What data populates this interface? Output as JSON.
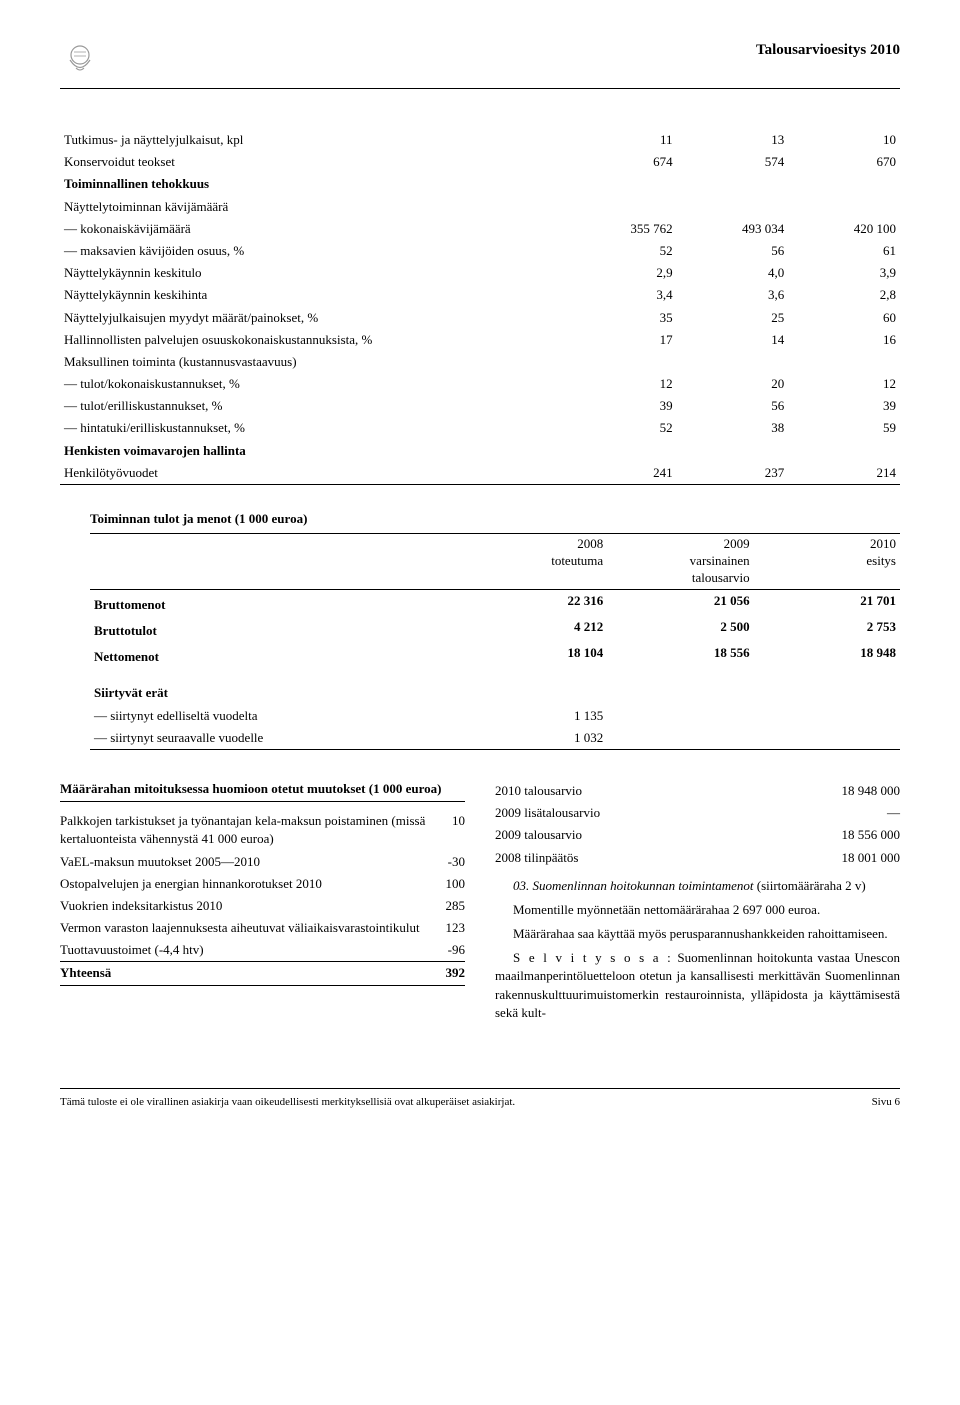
{
  "header": {
    "doc_title": "Talousarvioesitys 2010"
  },
  "table1": {
    "rows": [
      {
        "label": "Tutkimus- ja näyttelyjulkaisut, kpl",
        "c1": "11",
        "c2": "13",
        "c3": "10",
        "indent": false,
        "bold": false
      },
      {
        "label": "Konservoidut teokset",
        "c1": "674",
        "c2": "574",
        "c3": "670",
        "indent": false,
        "bold": false
      },
      {
        "label": "Toiminnallinen tehokkuus",
        "c1": "",
        "c2": "",
        "c3": "",
        "indent": false,
        "bold": true
      },
      {
        "label": "Näyttelytoiminnan kävijämäärä",
        "c1": "",
        "c2": "",
        "c3": "",
        "indent": false,
        "bold": false
      },
      {
        "label": "— kokonaiskävijämäärä",
        "c1": "355 762",
        "c2": "493 034",
        "c3": "420 100",
        "indent": false,
        "bold": false
      },
      {
        "label": "— maksavien kävijöiden osuus, %",
        "c1": "52",
        "c2": "56",
        "c3": "61",
        "indent": false,
        "bold": false
      },
      {
        "label": "Näyttelykäynnin keskitulo",
        "c1": "2,9",
        "c2": "4,0",
        "c3": "3,9",
        "indent": false,
        "bold": false
      },
      {
        "label": "Näyttelykäynnin keskihinta",
        "c1": "3,4",
        "c2": "3,6",
        "c3": "2,8",
        "indent": false,
        "bold": false
      },
      {
        "label": "Näyttelyjulkaisujen myydyt määrät/painokset, %",
        "c1": "35",
        "c2": "25",
        "c3": "60",
        "indent": false,
        "bold": false
      },
      {
        "label": "Hallinnollisten palvelujen osuuskokonaiskustannuksista, %",
        "c1": "17",
        "c2": "14",
        "c3": "16",
        "indent": false,
        "bold": false
      },
      {
        "label": "Maksullinen toiminta (kustannusvastaavuus)",
        "c1": "",
        "c2": "",
        "c3": "",
        "indent": false,
        "bold": false
      },
      {
        "label": "— tulot/kokonaiskustannukset, %",
        "c1": "12",
        "c2": "20",
        "c3": "12",
        "indent": false,
        "bold": false
      },
      {
        "label": "— tulot/erilliskustannukset, %",
        "c1": "39",
        "c2": "56",
        "c3": "39",
        "indent": false,
        "bold": false
      },
      {
        "label": "— hintatuki/erilliskustannukset, %",
        "c1": "52",
        "c2": "38",
        "c3": "59",
        "indent": false,
        "bold": false
      },
      {
        "label": "Henkisten voimavarojen hallinta",
        "c1": "",
        "c2": "",
        "c3": "",
        "indent": false,
        "bold": true
      },
      {
        "label": "Henkilötyövuodet",
        "c1": "241",
        "c2": "237",
        "c3": "214",
        "indent": false,
        "bold": false
      }
    ]
  },
  "table2": {
    "title": "Toiminnan tulot ja menot (1 000 euroa)",
    "head": {
      "h1_top": "",
      "h1_bot": "",
      "h2_top": "2008",
      "h2_bot": "toteutuma",
      "h3_top": "2009",
      "h3_mid": "varsinainen",
      "h3_bot": "talousarvio",
      "h4_top": "2010",
      "h4_bot": "esitys"
    },
    "rows": [
      {
        "label": "Bruttomenot",
        "c1": "22 316",
        "c2": "21 056",
        "c3": "21 701",
        "bold": true
      },
      {
        "label": "Bruttotulot",
        "c1": "4 212",
        "c2": "2 500",
        "c3": "2 753",
        "bold": true
      },
      {
        "label": "Nettomenot",
        "c1": "18 104",
        "c2": "18 556",
        "c3": "18 948",
        "bold": true
      }
    ],
    "rows2": [
      {
        "label": "Siirtyvät erät",
        "c1": "",
        "c2": "",
        "c3": "",
        "bold": true
      },
      {
        "label": "— siirtynyt edelliseltä vuodelta",
        "c1": "1 135",
        "c2": "",
        "c3": "",
        "bold": false
      },
      {
        "label": "— siirtynyt seuraavalle vuodelle",
        "c1": "1 032",
        "c2": "",
        "c3": "",
        "bold": false
      }
    ]
  },
  "left_col": {
    "heading": "Määrärahan mitoituksessa huomioon otetut muutokset (1 000 euroa)",
    "rows": [
      {
        "label": "Palkkojen tarkistukset ja työnantajan kela-maksun poistaminen (missä kertaluonteista vähennystä 41 000 euroa)",
        "val": "10"
      },
      {
        "label": "VaEL-maksun muutokset 2005—2010",
        "val": "-30"
      },
      {
        "label": "Ostopalvelujen ja energian hinnankorotukset 2010",
        "val": "100"
      },
      {
        "label": "Vuokrien indeksitarkistus 2010",
        "val": "285"
      },
      {
        "label": "Vermon varaston laajennuksesta aiheutuvat väliaikaisvarastointikulut",
        "val": "123"
      },
      {
        "label": "Tuottavuustoimet (-4,4 htv)",
        "val": "-96"
      }
    ],
    "total_label": "Yhteensä",
    "total_val": "392"
  },
  "right_col": {
    "budget": [
      {
        "label": "2010 talousarvio",
        "val": "18 948 000"
      },
      {
        "label": "2009 lisätalousarvio",
        "val": "—"
      },
      {
        "label": "2009 talousarvio",
        "val": "18 556 000"
      },
      {
        "label": "2008 tilinpäätös",
        "val": "18 001 000"
      }
    ],
    "item_no": "03.",
    "item_title": "Suomenlinnan hoitokunnan toimintamenot",
    "item_note": "(siirtomääräraha 2 v)",
    "p1": "Momentille myönnetään nettomäärärahaa 2 697 000 euroa.",
    "p2": "Määrärahaa saa käyttää myös perusparannushankkeiden rahoittamiseen.",
    "selv_label": "S e l v i t y s o s a :",
    "p3": "Suomenlinnan hoitokunta vastaa Unescon maailmanperintöluetteloon otetun ja kansallisesti merkittävän Suomenlinnan rakennuskulttuurimuistomerkin restauroinnista, ylläpidosta ja käyttämisestä sekä kult-"
  },
  "footer": {
    "left": "Tämä tuloste ei ole virallinen asiakirja vaan oikeudellisesti merkityksellisiä ovat alkuperäiset asiakirjat.",
    "right": "Sivu 6"
  }
}
